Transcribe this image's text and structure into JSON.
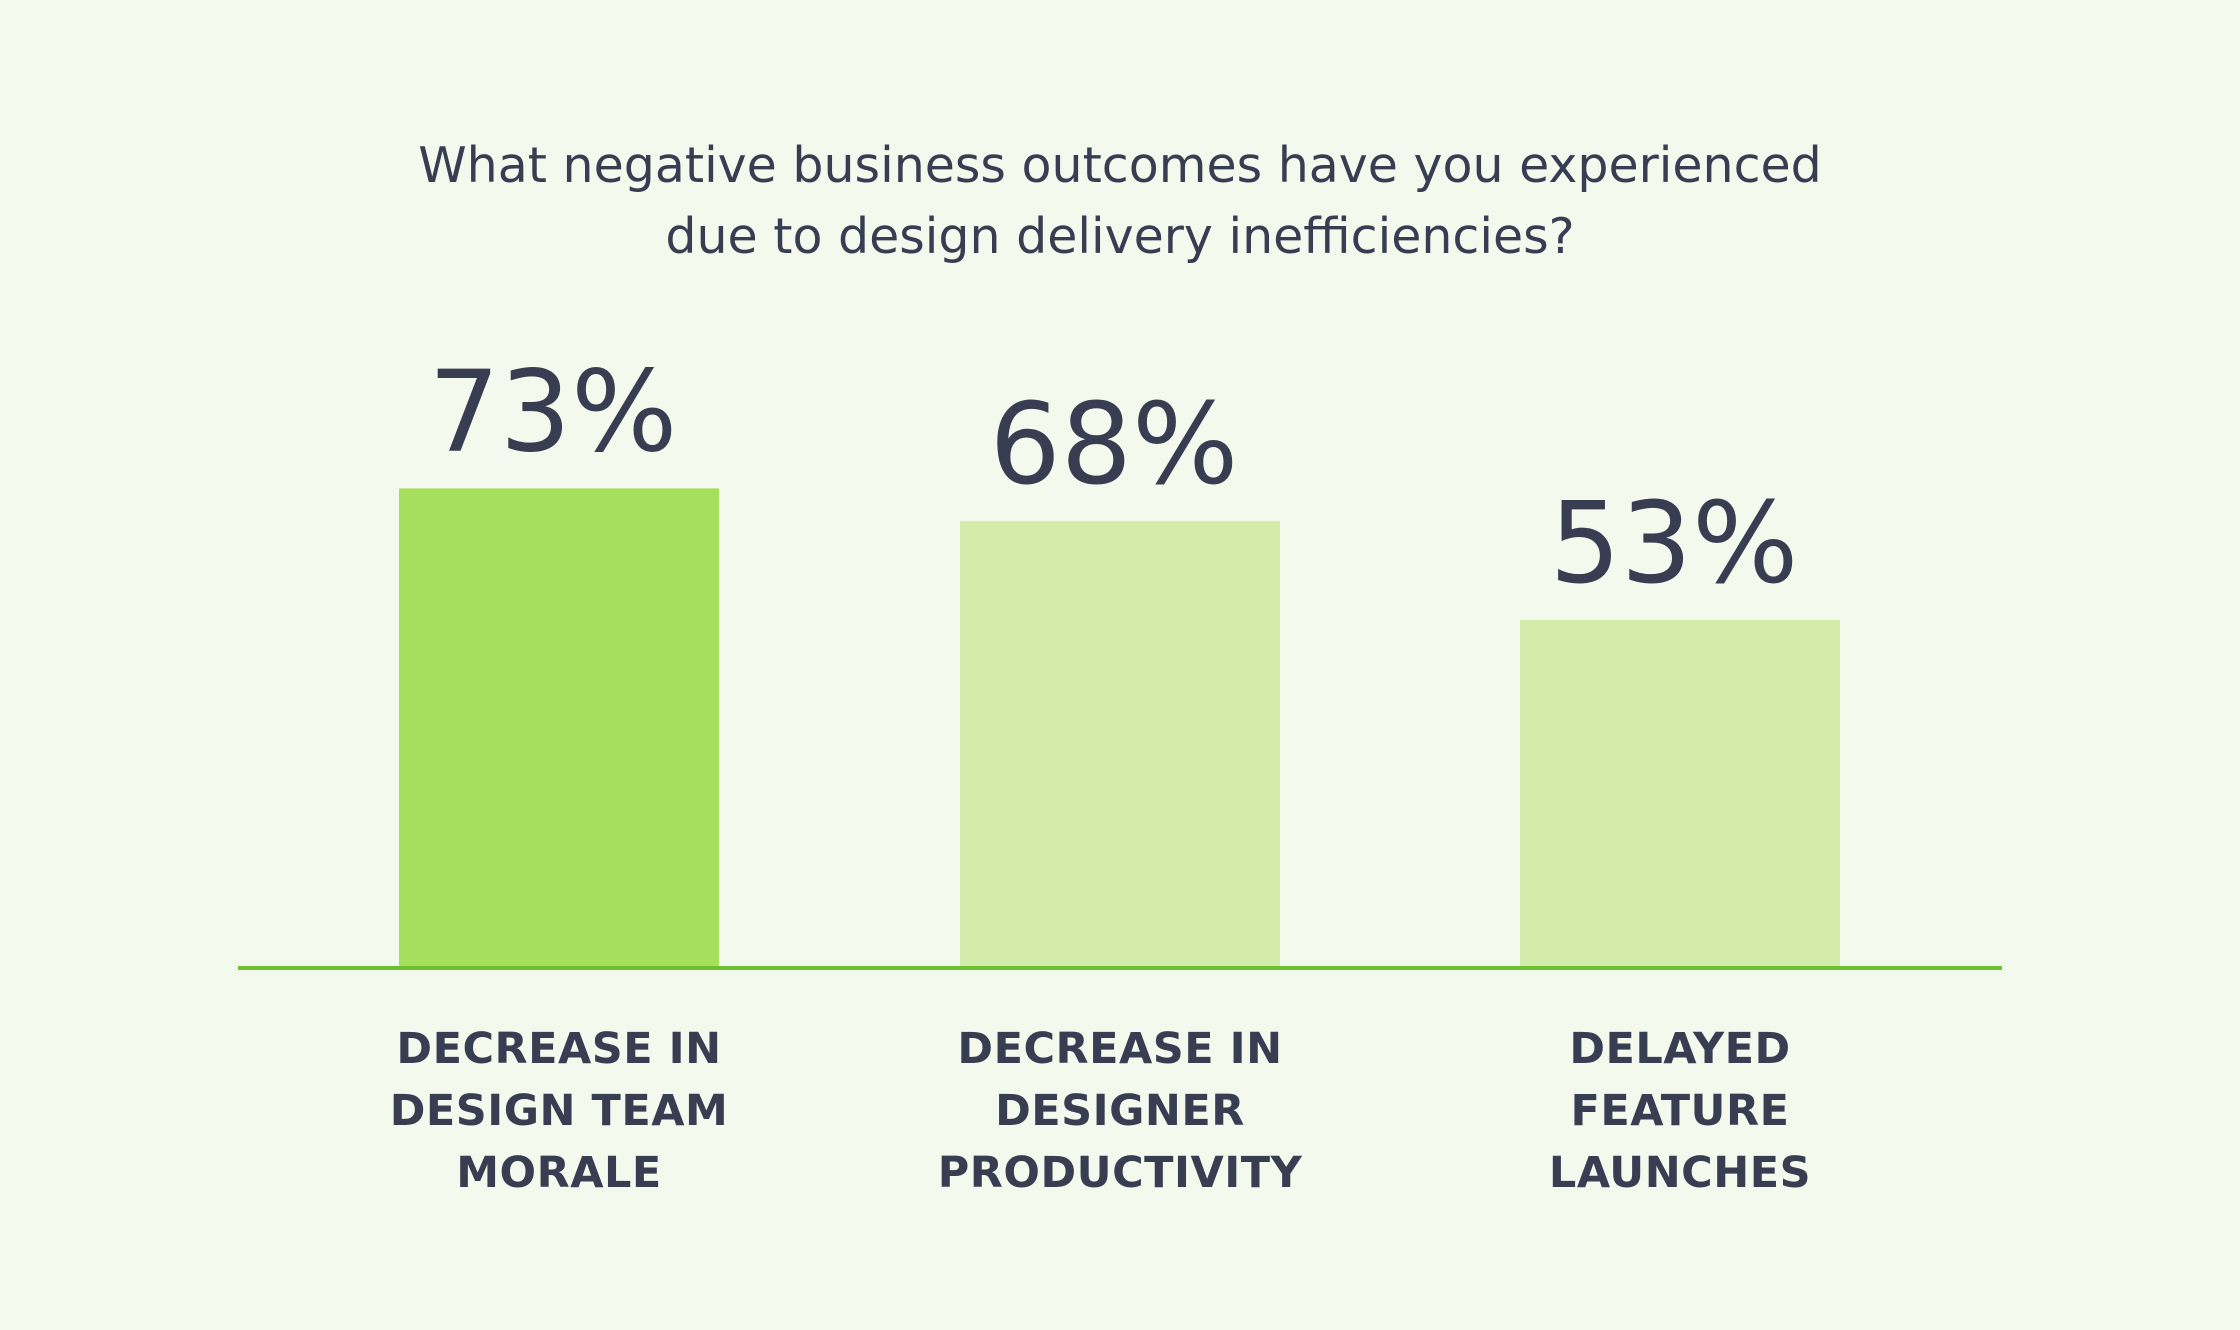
{
  "chart_data": {
    "type": "bar",
    "title_lines": [
      "What negative business outcomes have you experienced",
      "due to design delivery inefficiencies?"
    ],
    "categories": [
      [
        "DECREASE IN",
        "DESIGN TEAM",
        "MORALE"
      ],
      [
        "DECREASE IN",
        "DESIGNER",
        "PRODUCTIVITY"
      ],
      [
        "DELAYED",
        "FEATURE",
        "LAUNCHES"
      ]
    ],
    "values": [
      73,
      68,
      53
    ],
    "value_labels": [
      "73%",
      "68%",
      "53%"
    ],
    "ylim": [
      0,
      100
    ],
    "grid": false,
    "colors": {
      "highlight_bar": "#a6df5b",
      "bar": "#d3ecaa",
      "axis_line": "#6cbf2e",
      "text": "#383d52",
      "background": "#f4f9ee"
    }
  }
}
